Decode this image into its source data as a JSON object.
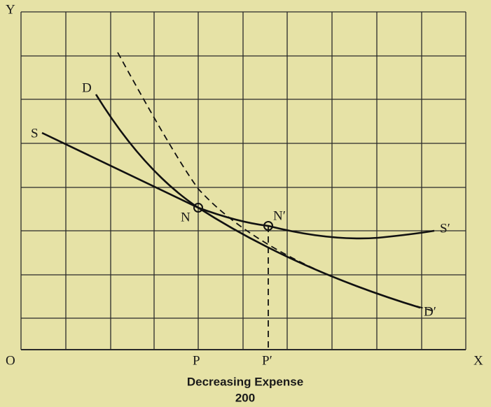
{
  "labels": {
    "y_axis": "Y",
    "origin": "O",
    "x_axis": "X",
    "p": "P",
    "p_prime": "P′",
    "d": "D",
    "s": "S",
    "n": "N",
    "n_prime": "N′",
    "s_prime": "S′",
    "d_prime": "D′"
  },
  "caption": "Decreasing Expense",
  "page_number": "200"
}
